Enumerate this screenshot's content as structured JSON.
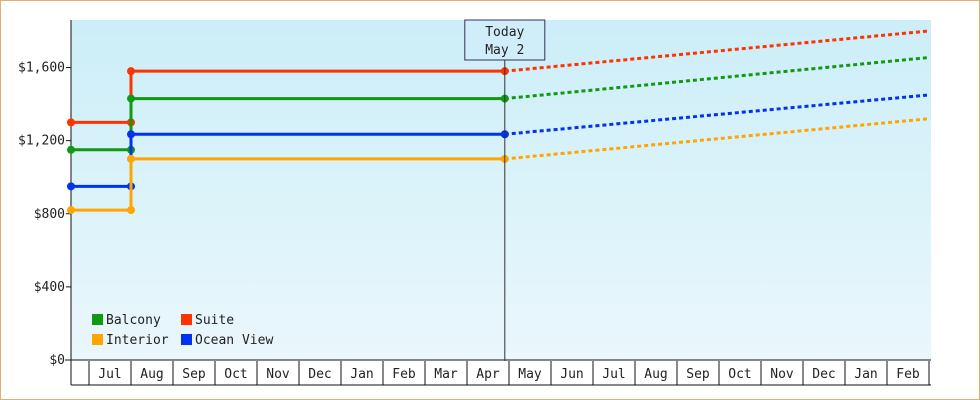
{
  "chart_data": {
    "type": "line",
    "subtype": "step-with-projection",
    "y_ticks": [
      "$0",
      "$400",
      "$800",
      "$1,200",
      "$1,600"
    ],
    "y_tick_values": [
      0,
      400,
      800,
      1200,
      1600
    ],
    "ylim": [
      0,
      1860
    ],
    "x_categories": [
      "Jul",
      "Aug",
      "Sep",
      "Oct",
      "Nov",
      "Dec",
      "Jan",
      "Feb",
      "Mar",
      "Apr",
      "May",
      "Jun",
      "Jul",
      "Aug",
      "Sep",
      "Oct",
      "Nov",
      "Dec",
      "Jan",
      "Feb"
    ],
    "today_marker": {
      "line1": "Today",
      "line2": "May 2",
      "month_index": 10
    },
    "grid": false,
    "legend_position": "bottom-left",
    "colors": {
      "bg_top": "#cceef8",
      "bg_bottom": "#eaf7fc",
      "border": "#e0b070"
    },
    "series": [
      {
        "name": "Suite",
        "color": "#ff3300",
        "history": [
          [
            0,
            1300
          ],
          [
            1.5,
            1300
          ],
          [
            1.5,
            1580
          ],
          [
            10.4,
            1580
          ]
        ],
        "projection": [
          [
            10.4,
            1580
          ],
          [
            20.5,
            1800
          ]
        ]
      },
      {
        "name": "Balcony",
        "color": "#119911",
        "history": [
          [
            0,
            1150
          ],
          [
            1.5,
            1150
          ],
          [
            1.5,
            1430
          ],
          [
            10.4,
            1430
          ]
        ],
        "projection": [
          [
            10.4,
            1430
          ],
          [
            20.5,
            1655
          ]
        ]
      },
      {
        "name": "Ocean View",
        "color": "#0033ee",
        "history": [
          [
            0,
            950
          ],
          [
            1.5,
            950
          ],
          [
            1.5,
            1235
          ],
          [
            10.4,
            1235
          ]
        ],
        "projection": [
          [
            10.4,
            1235
          ],
          [
            20.5,
            1450
          ]
        ]
      },
      {
        "name": "Interior",
        "color": "#ffa500",
        "history": [
          [
            0,
            820
          ],
          [
            1.5,
            820
          ],
          [
            1.5,
            1100
          ],
          [
            10.4,
            1100
          ]
        ],
        "projection": [
          [
            10.4,
            1100
          ],
          [
            20.5,
            1320
          ]
        ]
      }
    ],
    "legend": [
      [
        "Balcony",
        "Suite"
      ],
      [
        "Interior",
        "Ocean View"
      ]
    ]
  }
}
